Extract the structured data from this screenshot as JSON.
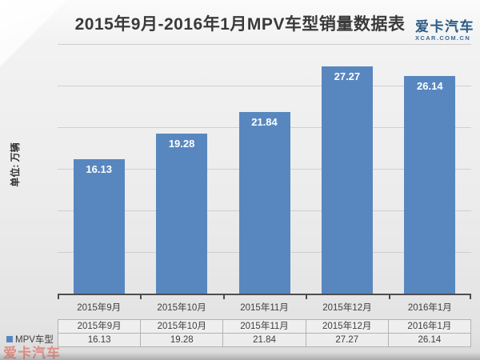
{
  "page": {
    "title": "2015年9月-2016年1月MPV车型销量数据表",
    "unit_label": "单位: 万辆"
  },
  "logo": {
    "name": "爱卡汽车",
    "site": "XCAR.COM.CN"
  },
  "watermark": {
    "text": "爱卡汽车"
  },
  "legend": {
    "label": "MPV车型"
  },
  "chart_data": {
    "type": "bar",
    "title": "2015年9月-2016年1月MPV车型销量数据表",
    "ylabel": "单位: 万辆",
    "xlabel": "",
    "categories": [
      "2015年9月",
      "2015年10月",
      "2015年11月",
      "2015年12月",
      "2016年1月"
    ],
    "series": [
      {
        "name": "MPV车型",
        "values": [
          16.13,
          19.28,
          21.84,
          27.27,
          26.14
        ]
      }
    ],
    "value_label_format": "2-decimals",
    "ylim": [
      0,
      30
    ],
    "gridline_step": 5,
    "grid": true,
    "y_tick_labels_shown": false,
    "legend_position": "bottom-left",
    "show_data_table": true,
    "value_labels": "inside-top white bold",
    "bar_color": "#5887c0"
  },
  "colors": {
    "bar": "#5887c0",
    "logo_blue": "#2b5b86",
    "watermark_red": "#e2796e",
    "title_text": "#3a3a3a",
    "gridline": "#cfcfcf",
    "axis_line": "#4d4d4d"
  }
}
